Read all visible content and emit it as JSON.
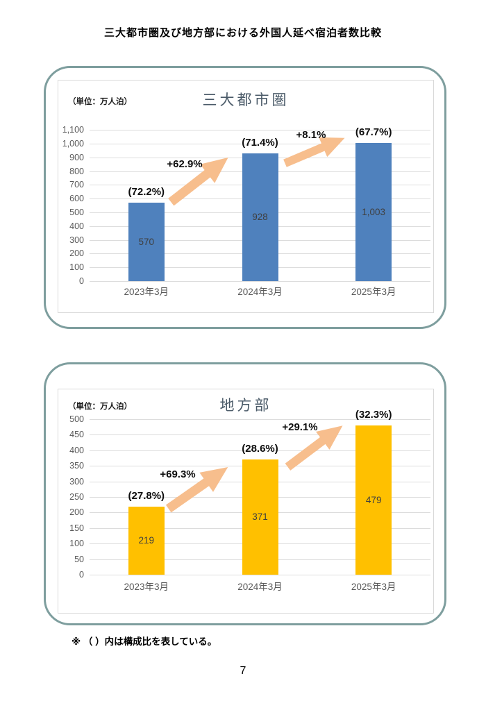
{
  "page": {
    "title": "三大都市圏及び地方部における外国人延べ宿泊者数比較",
    "footnote": "※ （ ）内は構成比を表している。",
    "page_number": "7"
  },
  "chart_data": [
    {
      "type": "bar",
      "title": "三大都市圏",
      "unit_label": "（単位：万人泊）",
      "categories": [
        "2023年3月",
        "2024年3月",
        "2025年3月"
      ],
      "values": [
        570,
        928,
        1003
      ],
      "value_labels": [
        "570",
        "928",
        "1,003"
      ],
      "share_labels": [
        "(72.2%)",
        "(71.4%)",
        "(67.7%)"
      ],
      "growth_labels": [
        "+62.9%",
        "+8.1%"
      ],
      "xlabel": "",
      "ylabel": "",
      "ylim": [
        0,
        1100
      ],
      "ytick_step": 100,
      "grid": true,
      "legend": "none",
      "bar_color": "#4F81BD",
      "arrow_color": "#F7BE8D"
    },
    {
      "type": "bar",
      "title": "地方部",
      "unit_label": "（単位：万人泊）",
      "categories": [
        "2023年3月",
        "2024年3月",
        "2025年3月"
      ],
      "values": [
        219,
        371,
        479
      ],
      "value_labels": [
        "219",
        "371",
        "479"
      ],
      "share_labels": [
        "(27.8%)",
        "(28.6%)",
        "(32.3%)"
      ],
      "growth_labels": [
        "+69.3%",
        "+29.1%"
      ],
      "xlabel": "",
      "ylabel": "",
      "ylim": [
        0,
        500
      ],
      "ytick_step": 50,
      "grid": true,
      "legend": "none",
      "bar_color": "#FFC000",
      "arrow_color": "#F7BE8D"
    }
  ]
}
